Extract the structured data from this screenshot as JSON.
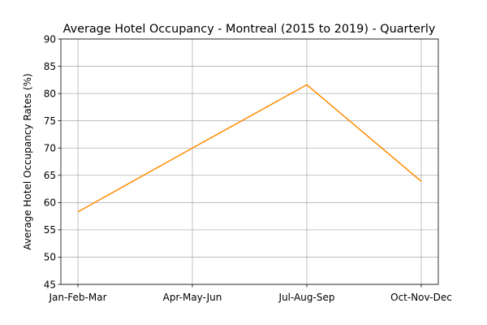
{
  "chart_data": {
    "type": "line",
    "title": "Average Hotel Occupancy - Montreal (2015 to 2019) - Quarterly",
    "xlabel": "",
    "ylabel": "Average Hotel Occupancy Rates (%)",
    "categories": [
      "Jan-Feb-Mar",
      "Apr-May-Jun",
      "Jul-Aug-Sep",
      "Oct-Nov-Dec"
    ],
    "series": [
      {
        "color": "#ff8c00",
        "values": [
          58.3,
          70.0,
          81.6,
          63.9
        ]
      }
    ],
    "ylim": [
      45,
      90
    ],
    "yticks": [
      45,
      50,
      55,
      60,
      65,
      70,
      75,
      80,
      85,
      90
    ],
    "grid": true,
    "legend": "none"
  }
}
